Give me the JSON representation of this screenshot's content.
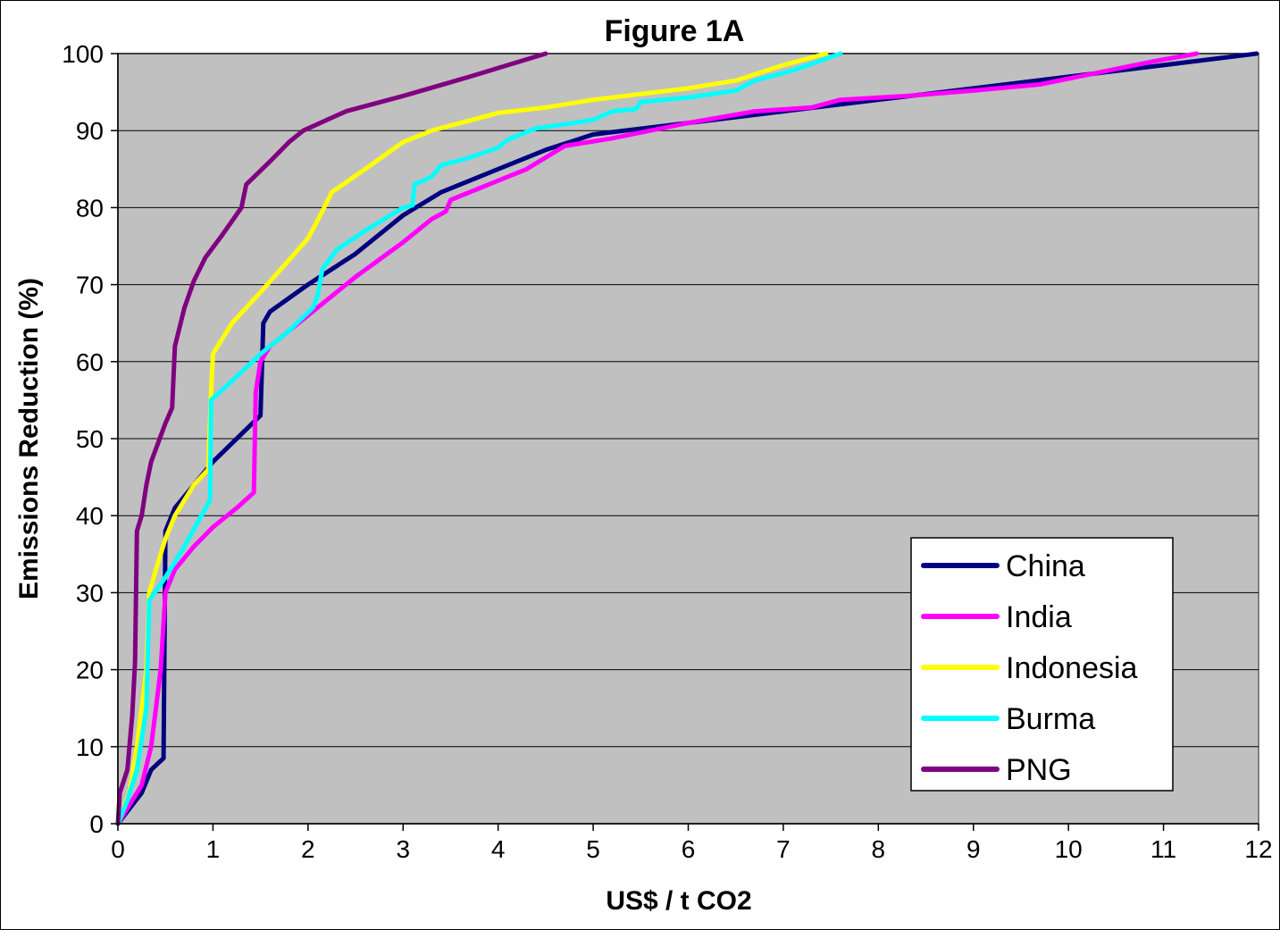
{
  "chart_data": {
    "type": "line",
    "title": "Figure 1A",
    "xlabel": "US$ / t CO2",
    "ylabel": "Emissions Reduction (%)",
    "xlim": [
      0,
      12
    ],
    "ylim": [
      0,
      100
    ],
    "xticks": [
      "0",
      "1",
      "2",
      "3",
      "4",
      "5",
      "6",
      "7",
      "8",
      "9",
      "10",
      "11",
      "12"
    ],
    "yticks": [
      "0",
      "10",
      "20",
      "30",
      "40",
      "50",
      "60",
      "70",
      "80",
      "90",
      "100"
    ],
    "grid": "horizontal",
    "plot_background": "#c0c0c0",
    "legend_position": "bottom-right",
    "series": [
      {
        "name": "China",
        "color": "#000080",
        "points": [
          [
            0,
            0
          ],
          [
            0.25,
            4
          ],
          [
            0.35,
            7
          ],
          [
            0.48,
            8.5
          ],
          [
            0.5,
            38
          ],
          [
            0.6,
            41
          ],
          [
            0.8,
            44
          ],
          [
            1.0,
            47
          ],
          [
            1.5,
            53
          ],
          [
            1.53,
            65
          ],
          [
            1.6,
            66.5
          ],
          [
            2.0,
            70
          ],
          [
            2.5,
            74
          ],
          [
            3.0,
            79
          ],
          [
            3.4,
            82
          ],
          [
            4.0,
            85
          ],
          [
            4.5,
            87.5
          ],
          [
            5.0,
            89.5
          ],
          [
            6.0,
            91
          ],
          [
            7.0,
            92.5
          ],
          [
            8.0,
            94
          ],
          [
            9.0,
            95.5
          ],
          [
            10.0,
            97
          ],
          [
            11.0,
            98.5
          ],
          [
            11.98,
            100
          ]
        ]
      },
      {
        "name": "India",
        "color": "#ff00ff",
        "points": [
          [
            0,
            0
          ],
          [
            0.25,
            5
          ],
          [
            0.35,
            10
          ],
          [
            0.45,
            20
          ],
          [
            0.5,
            30
          ],
          [
            0.6,
            33
          ],
          [
            0.8,
            36
          ],
          [
            1.0,
            38.5
          ],
          [
            1.25,
            41
          ],
          [
            1.43,
            43
          ],
          [
            1.45,
            56
          ],
          [
            1.5,
            60
          ],
          [
            1.6,
            62
          ],
          [
            1.8,
            64
          ],
          [
            2.0,
            66
          ],
          [
            2.5,
            71
          ],
          [
            3.0,
            75.5
          ],
          [
            3.3,
            78.5
          ],
          [
            3.45,
            79.5
          ],
          [
            3.5,
            81
          ],
          [
            4.0,
            83.5
          ],
          [
            4.3,
            85
          ],
          [
            4.7,
            88
          ],
          [
            5.2,
            89
          ],
          [
            6.0,
            91
          ],
          [
            6.7,
            92.5
          ],
          [
            7.3,
            93
          ],
          [
            7.6,
            94
          ],
          [
            8.3,
            94.5
          ],
          [
            9.0,
            95.2
          ],
          [
            9.7,
            96
          ],
          [
            10.3,
            97.5
          ],
          [
            10.9,
            99
          ],
          [
            11.35,
            100
          ]
        ]
      },
      {
        "name": "Indonesia",
        "color": "#ffff00",
        "points": [
          [
            0,
            0
          ],
          [
            0.12,
            4
          ],
          [
            0.2,
            10
          ],
          [
            0.3,
            20
          ],
          [
            0.33,
            30
          ],
          [
            0.4,
            33
          ],
          [
            0.5,
            37
          ],
          [
            0.6,
            40
          ],
          [
            0.8,
            44
          ],
          [
            0.95,
            46
          ],
          [
            0.98,
            56
          ],
          [
            1.0,
            61
          ],
          [
            1.1,
            63
          ],
          [
            1.2,
            65
          ],
          [
            1.5,
            69
          ],
          [
            2.0,
            76
          ],
          [
            2.15,
            79.5
          ],
          [
            2.25,
            82
          ],
          [
            2.6,
            85
          ],
          [
            3.0,
            88.5
          ],
          [
            3.3,
            90
          ],
          [
            4.0,
            92.3
          ],
          [
            4.5,
            93
          ],
          [
            5.0,
            94
          ],
          [
            6.0,
            95.5
          ],
          [
            6.5,
            96.5
          ],
          [
            7.0,
            98.5
          ],
          [
            7.45,
            100
          ]
        ]
      },
      {
        "name": "Burma",
        "color": "#00ffff",
        "points": [
          [
            0,
            0
          ],
          [
            0.1,
            3
          ],
          [
            0.2,
            7
          ],
          [
            0.3,
            15
          ],
          [
            0.33,
            29
          ],
          [
            0.5,
            32
          ],
          [
            0.7,
            36
          ],
          [
            0.9,
            40.5
          ],
          [
            0.97,
            42
          ],
          [
            0.98,
            55
          ],
          [
            1.2,
            57.5
          ],
          [
            1.5,
            61
          ],
          [
            1.8,
            64
          ],
          [
            2.05,
            67
          ],
          [
            2.1,
            68.5
          ],
          [
            2.15,
            72
          ],
          [
            2.3,
            74.5
          ],
          [
            2.6,
            77
          ],
          [
            3.0,
            80
          ],
          [
            3.1,
            80.3
          ],
          [
            3.12,
            83
          ],
          [
            3.3,
            84
          ],
          [
            3.4,
            85.5
          ],
          [
            3.7,
            86.5
          ],
          [
            4.0,
            87.8
          ],
          [
            4.1,
            88.8
          ],
          [
            4.4,
            90.3
          ],
          [
            4.8,
            91
          ],
          [
            5.0,
            91.4
          ],
          [
            5.2,
            92.5
          ],
          [
            5.45,
            92.8
          ],
          [
            5.5,
            93.7
          ],
          [
            6.0,
            94.3
          ],
          [
            6.5,
            95.2
          ],
          [
            6.7,
            96.5
          ],
          [
            7.1,
            97.8
          ],
          [
            7.6,
            100
          ]
        ]
      },
      {
        "name": "PNG",
        "color": "#800080",
        "points": [
          [
            0,
            0
          ],
          [
            0.02,
            4
          ],
          [
            0.1,
            7
          ],
          [
            0.15,
            14
          ],
          [
            0.18,
            21
          ],
          [
            0.2,
            38
          ],
          [
            0.25,
            40
          ],
          [
            0.3,
            44
          ],
          [
            0.35,
            47
          ],
          [
            0.5,
            52
          ],
          [
            0.57,
            54
          ],
          [
            0.6,
            62
          ],
          [
            0.7,
            67
          ],
          [
            0.8,
            70.5
          ],
          [
            0.92,
            73.5
          ],
          [
            1.1,
            76.5
          ],
          [
            1.3,
            80
          ],
          [
            1.35,
            83
          ],
          [
            1.6,
            86
          ],
          [
            1.8,
            88.5
          ],
          [
            1.95,
            90
          ],
          [
            2.4,
            92.5
          ],
          [
            3.0,
            94.5
          ],
          [
            3.7,
            97
          ],
          [
            4.5,
            100
          ]
        ]
      }
    ]
  }
}
